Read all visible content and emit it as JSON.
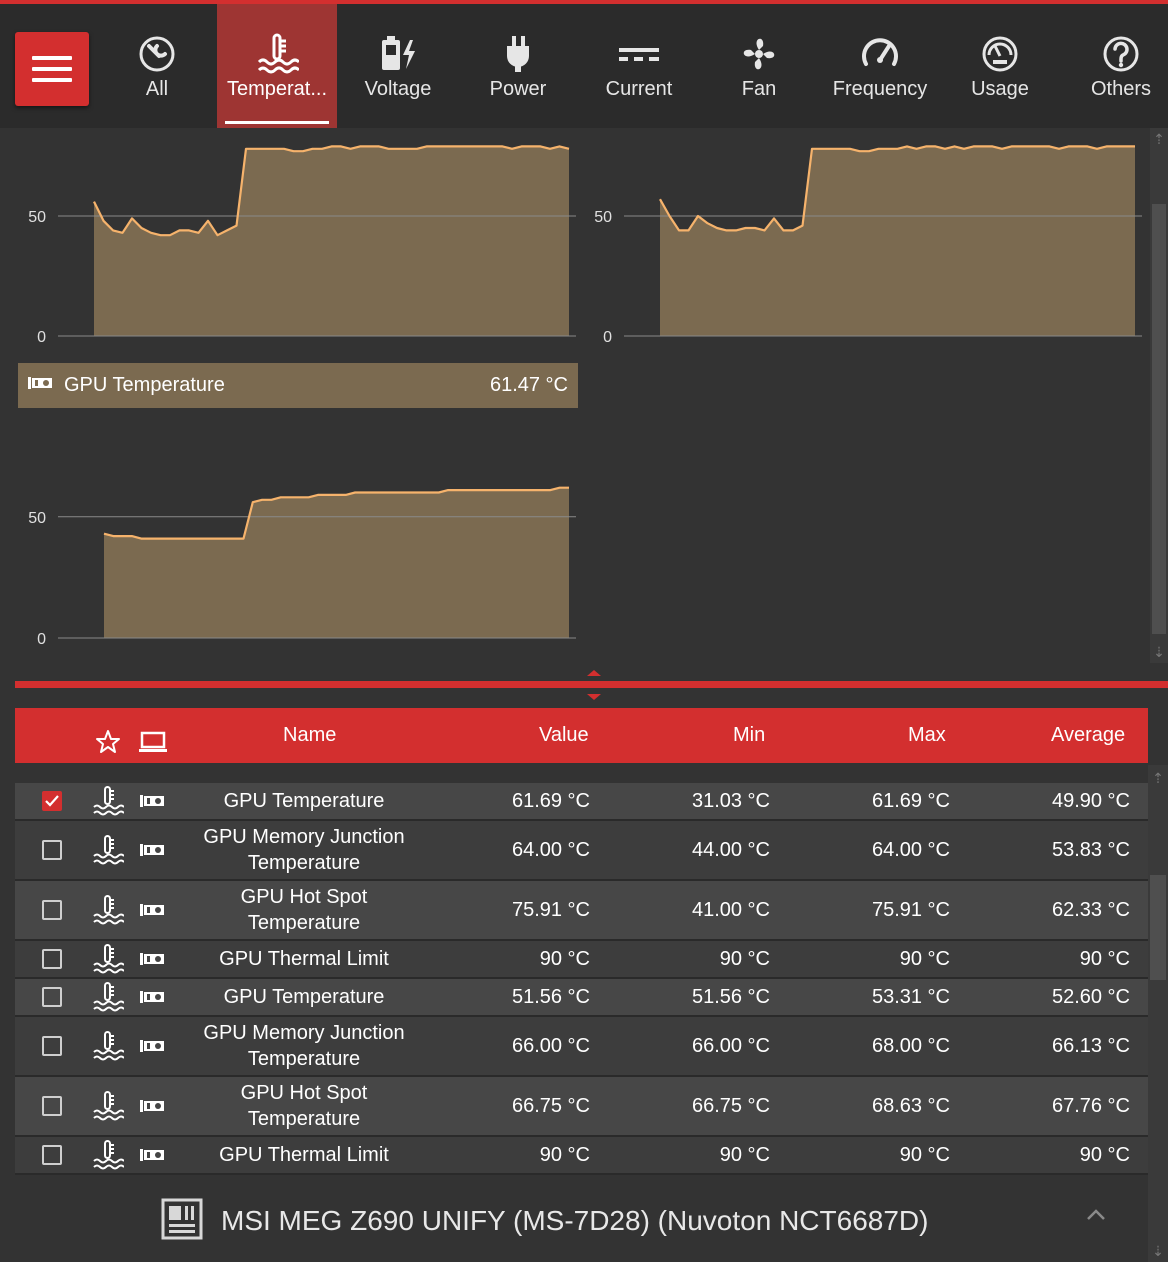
{
  "toolbar": {
    "tabs": [
      {
        "label": "All",
        "icon": "wrench-gauge-icon"
      },
      {
        "label": "Temperat...",
        "icon": "thermometer-icon",
        "active": true
      },
      {
        "label": "Voltage",
        "icon": "battery-bolt-icon"
      },
      {
        "label": "Power",
        "icon": "plug-icon"
      },
      {
        "label": "Current",
        "icon": "dc-current-icon"
      },
      {
        "label": "Fan",
        "icon": "fan-icon"
      },
      {
        "label": "Frequency",
        "icon": "speedometer-icon"
      },
      {
        "label": "Usage",
        "icon": "gauge-face-icon"
      },
      {
        "label": "Others",
        "icon": "question-icon"
      }
    ]
  },
  "graphs": {
    "caption": {
      "name": "GPU Temperature",
      "value": "61.47 °C"
    },
    "tick_labels": {
      "high": "50",
      "low": "0"
    }
  },
  "chart_data": [
    {
      "type": "area",
      "ylim": [
        0,
        80
      ],
      "yticks": [
        0,
        50
      ],
      "series": [
        {
          "values": [
            56,
            48,
            44,
            43,
            49,
            45,
            43,
            42,
            42,
            44,
            44,
            43,
            48,
            42,
            44,
            46,
            78,
            78,
            78,
            78,
            78,
            77,
            77,
            78,
            78,
            79,
            79,
            78,
            79,
            79,
            79,
            78,
            78,
            78,
            78,
            79,
            79,
            79,
            79,
            79,
            79,
            79,
            79,
            79,
            78,
            79,
            79,
            79,
            78,
            79,
            78
          ]
        }
      ],
      "color": "#f6b36c"
    },
    {
      "type": "area",
      "ylim": [
        0,
        80
      ],
      "yticks": [
        0,
        50
      ],
      "series": [
        {
          "values": [
            57,
            50,
            44,
            44,
            50,
            47,
            45,
            44,
            44,
            45,
            45,
            44,
            49,
            44,
            44,
            46,
            78,
            78,
            78,
            78,
            78,
            77,
            77,
            78,
            78,
            78,
            79,
            78,
            79,
            79,
            78,
            79,
            78,
            79,
            79,
            79,
            78,
            79,
            79,
            79,
            79,
            79,
            78,
            79,
            79,
            79,
            78,
            79,
            79,
            79,
            79
          ]
        }
      ],
      "color": "#f6b36c"
    },
    {
      "type": "area",
      "ylim": [
        0,
        80
      ],
      "yticks": [
        0,
        50
      ],
      "series": [
        {
          "values": [
            43,
            42,
            42,
            42,
            41,
            41,
            41,
            41,
            41,
            41,
            41,
            41,
            41,
            41,
            41,
            41,
            56,
            57,
            57,
            58,
            58,
            58,
            58,
            59,
            59,
            59,
            59,
            60,
            60,
            60,
            60,
            60,
            60,
            60,
            60,
            60,
            60,
            61,
            61,
            61,
            61,
            61,
            61,
            61,
            61,
            61,
            61,
            61,
            61,
            62,
            62
          ]
        }
      ],
      "color": "#f6b36c"
    }
  ],
  "table": {
    "headers": {
      "name": "Name",
      "value": "Value",
      "min": "Min",
      "max": "Max",
      "average": "Average"
    },
    "rows": [
      {
        "checked": true,
        "name": "GPU Temperature",
        "value": "61.69 °C",
        "min": "31.03 °C",
        "max": "61.69 °C",
        "average": "49.90 °C"
      },
      {
        "checked": false,
        "name": "GPU Memory Junction Temperature",
        "value": "64.00 °C",
        "min": "44.00 °C",
        "max": "64.00 °C",
        "average": "53.83 °C"
      },
      {
        "checked": false,
        "name": "GPU Hot Spot Temperature",
        "value": "75.91 °C",
        "min": "41.00 °C",
        "max": "75.91 °C",
        "average": "62.33 °C"
      },
      {
        "checked": false,
        "name": "GPU Thermal Limit",
        "value": "90 °C",
        "min": "90 °C",
        "max": "90 °C",
        "average": "90 °C"
      },
      {
        "checked": false,
        "name": "GPU Temperature",
        "value": "51.56 °C",
        "min": "51.56 °C",
        "max": "53.31 °C",
        "average": "52.60 °C"
      },
      {
        "checked": false,
        "name": "GPU Memory Junction Temperature",
        "value": "66.00 °C",
        "min": "66.00 °C",
        "max": "68.00 °C",
        "average": "66.13 °C"
      },
      {
        "checked": false,
        "name": "GPU Hot Spot Temperature",
        "value": "66.75 °C",
        "min": "66.75 °C",
        "max": "68.63 °C",
        "average": "67.76 °C"
      },
      {
        "checked": false,
        "name": "GPU Thermal Limit",
        "value": "90 °C",
        "min": "90 °C",
        "max": "90 °C",
        "average": "90 °C"
      }
    ]
  },
  "group_footer": {
    "title": "MSI MEG Z690 UNIFY (MS-7D28) (Nuvoton NCT6687D)"
  },
  "colors": {
    "accent": "#d32f2f",
    "graph_fill": "#7b6a50",
    "graph_line": "#f6b36c",
    "background": "#333333"
  }
}
